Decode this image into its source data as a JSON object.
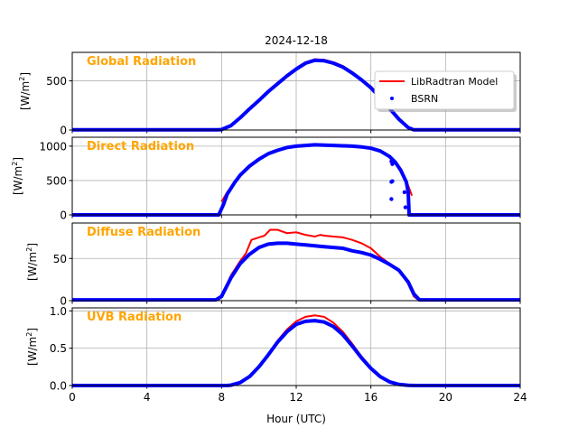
{
  "chart_data": {
    "type": "line",
    "title": "2024-12-18",
    "xlabel": "Hour (UTC)",
    "xlim": [
      0,
      24
    ],
    "xticks": [
      "0",
      "4",
      "8",
      "12",
      "16",
      "20",
      "24"
    ],
    "grid": true,
    "legend": {
      "placement": "top-right of first panel",
      "entries": [
        "LibRadtran Model",
        "BSRN"
      ]
    },
    "colors": {
      "model": "#ff0000",
      "bsrn": "#0000ff",
      "panel_title": "#ffa500"
    },
    "panels": [
      {
        "name": "Global Radiation",
        "ylabel": "[W/m2]",
        "ylim": [
          0,
          790
        ],
        "yticks": [
          0,
          500
        ],
        "ytick_labels": [
          "0",
          "500"
        ],
        "model": {
          "x": [
            8.0,
            8.5,
            9,
            9.5,
            10,
            10.5,
            11,
            11.5,
            12,
            12.5,
            13,
            13.5,
            14,
            14.5,
            15,
            15.5,
            16,
            16.5,
            17,
            17.5,
            18,
            18.3
          ],
          "y": [
            5,
            50,
            130,
            220,
            310,
            400,
            480,
            560,
            630,
            690,
            720,
            715,
            690,
            650,
            590,
            520,
            440,
            340,
            230,
            120,
            30,
            0
          ]
        },
        "bsrn": {
          "x": [
            0,
            7.8,
            8.0,
            8.5,
            9,
            9.5,
            10,
            10.5,
            11,
            11.5,
            12,
            12.5,
            13,
            13.5,
            14,
            14.5,
            15,
            15.5,
            16,
            16.5,
            17,
            17.5,
            18,
            18.3,
            24
          ],
          "y": [
            2,
            2,
            5,
            45,
            125,
            215,
            300,
            390,
            470,
            550,
            620,
            680,
            710,
            705,
            680,
            640,
            580,
            510,
            430,
            330,
            220,
            110,
            25,
            2,
            2
          ]
        },
        "outliers": {
          "x": [],
          "y": []
        }
      },
      {
        "name": "Direct Radiation",
        "ylabel": "[W/m2]",
        "ylim": [
          0,
          1130
        ],
        "yticks": [
          0,
          500,
          1000
        ],
        "ytick_labels": [
          "0",
          "500",
          "1000"
        ],
        "model": {
          "x": [
            8.0,
            8.3,
            8.7,
            9,
            9.5,
            10,
            10.5,
            11,
            11.5,
            12,
            12.5,
            13,
            13.5,
            14,
            14.5,
            15,
            15.5,
            16,
            16.5,
            17,
            17.3,
            17.6,
            17.9,
            18.2
          ],
          "y": [
            190,
            330,
            480,
            590,
            720,
            820,
            900,
            950,
            985,
            1005,
            1015,
            1025,
            1020,
            1015,
            1010,
            1005,
            995,
            975,
            940,
            860,
            780,
            660,
            500,
            280
          ]
        },
        "bsrn": {
          "x": [
            0,
            7.85,
            7.95,
            8.1,
            8.3,
            8.7,
            9,
            9.5,
            10,
            10.5,
            11,
            11.5,
            12,
            12.5,
            13,
            13.5,
            14,
            14.5,
            15,
            15.5,
            16,
            16.5,
            17,
            17.3,
            17.6,
            17.9,
            18.0,
            18.05,
            24
          ],
          "y": [
            0,
            0,
            60,
            150,
            300,
            470,
            580,
            710,
            810,
            890,
            940,
            980,
            1000,
            1010,
            1020,
            1015,
            1010,
            1005,
            1000,
            990,
            970,
            930,
            850,
            770,
            650,
            480,
            330,
            0,
            0
          ]
        },
        "outliers": {
          "x": [
            17.1,
            17.15,
            17.1,
            17.15,
            17.1,
            17.8,
            17.85
          ],
          "y": [
            780,
            740,
            480,
            490,
            230,
            330,
            110
          ]
        }
      },
      {
        "name": "Diffuse Radiation",
        "ylabel": "[W/m2]",
        "ylim": [
          0,
          92
        ],
        "yticks": [
          0,
          50
        ],
        "ytick_labels": [
          "0",
          "50"
        ],
        "model": {
          "x": [
            7.8,
            8.0,
            8.5,
            9,
            9.3,
            9.6,
            10,
            10.3,
            10.6,
            11,
            11.5,
            12,
            12.5,
            13,
            13.3,
            13.5,
            14,
            14.5,
            15,
            15.5,
            16,
            16.5,
            17,
            17.5,
            18,
            18.3,
            18.6
          ],
          "y": [
            0,
            5,
            30,
            47,
            56,
            72,
            75,
            77,
            84,
            84,
            80,
            81,
            78,
            76,
            78,
            77,
            76,
            75,
            72,
            68,
            62,
            52,
            44,
            36,
            20,
            5,
            0
          ]
        },
        "bsrn": {
          "x": [
            0,
            7.7,
            8.0,
            8.5,
            9,
            9.5,
            10,
            10.5,
            11,
            11.5,
            12,
            12.5,
            13,
            13.5,
            14,
            14.5,
            15,
            15.5,
            16,
            16.5,
            17,
            17.5,
            18,
            18.3,
            18.6,
            24
          ],
          "y": [
            1,
            1,
            5,
            27,
            44,
            55,
            63,
            67,
            68,
            68,
            67,
            66,
            65,
            64,
            63,
            62,
            59,
            57,
            54,
            49,
            43,
            36,
            22,
            8,
            1,
            1
          ]
        },
        "outliers": {
          "x": [],
          "y": []
        }
      },
      {
        "name": "UVB Radiation",
        "ylabel": "[W/m2]",
        "ylim": [
          0,
          1.04
        ],
        "yticks": [
          0,
          0.5,
          1.0
        ],
        "ytick_labels": [
          "0.0",
          "0.5",
          "1.0"
        ],
        "model": {
          "x": [
            8.5,
            9,
            9.5,
            10,
            10.5,
            11,
            11.5,
            12,
            12.5,
            13,
            13.5,
            14,
            14.5,
            15,
            15.5,
            16,
            16.5,
            17,
            17.5,
            18,
            18.3
          ],
          "y": [
            0,
            0.04,
            0.12,
            0.25,
            0.42,
            0.6,
            0.75,
            0.86,
            0.92,
            0.94,
            0.92,
            0.84,
            0.72,
            0.56,
            0.39,
            0.24,
            0.12,
            0.05,
            0.015,
            0.003,
            0
          ]
        },
        "bsrn": {
          "x": [
            0,
            8.3,
            8.5,
            9,
            9.5,
            10,
            10.5,
            11,
            11.5,
            12,
            12.5,
            13,
            13.5,
            14,
            14.5,
            15,
            15.5,
            16,
            16.5,
            17,
            17.5,
            18,
            18.4,
            24
          ],
          "y": [
            0,
            0,
            0.005,
            0.04,
            0.12,
            0.25,
            0.41,
            0.58,
            0.72,
            0.82,
            0.86,
            0.87,
            0.85,
            0.79,
            0.68,
            0.53,
            0.37,
            0.23,
            0.12,
            0.05,
            0.015,
            0.003,
            0,
            0
          ]
        },
        "outliers": {
          "x": [],
          "y": []
        }
      }
    ]
  }
}
